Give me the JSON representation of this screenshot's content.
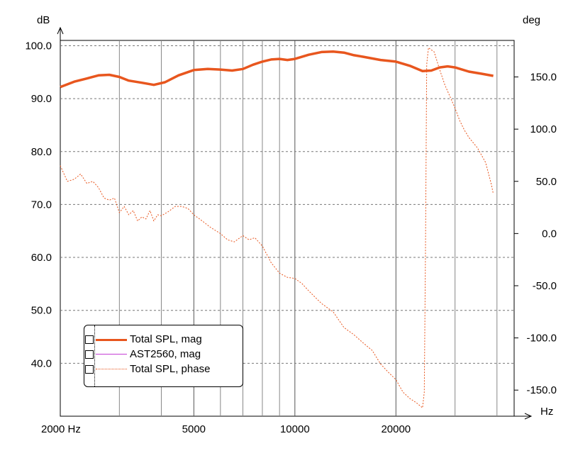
{
  "chart_data": {
    "type": "line",
    "x_unit": "Hz",
    "y_left_unit": "dB",
    "y_right_unit": "deg",
    "x_scale": "log",
    "xlim": [
      2000,
      45000
    ],
    "ylim_left": [
      30,
      101
    ],
    "ylim_right": [
      -175,
      185
    ],
    "x_tick_labels": [
      {
        "value": 2000,
        "label": "2000 Hz"
      },
      {
        "value": 5000,
        "label": "5000"
      },
      {
        "value": 10000,
        "label": "10000"
      },
      {
        "value": 20000,
        "label": "20000"
      }
    ],
    "x_axis_end_label": "Hz",
    "y_left_ticks": [
      {
        "value": 100,
        "label": "100.0"
      },
      {
        "value": 90,
        "label": "90.0"
      },
      {
        "value": 80,
        "label": "80.0"
      },
      {
        "value": 70,
        "label": "70.0"
      },
      {
        "value": 60,
        "label": "60.0"
      },
      {
        "value": 50,
        "label": "50.0"
      },
      {
        "value": 40,
        "label": "40.0"
      }
    ],
    "y_right_ticks": [
      {
        "value": 150,
        "label": "150.0"
      },
      {
        "value": 100,
        "label": "100.0"
      },
      {
        "value": 50,
        "label": "50.0"
      },
      {
        "value": 0,
        "label": "0.0"
      },
      {
        "value": -50,
        "label": "-50.0"
      },
      {
        "value": -100,
        "label": "-100.0"
      },
      {
        "value": -150,
        "label": "-150.0"
      }
    ],
    "grid": true,
    "legend_position": "bottom-left",
    "series": [
      {
        "name": "Total SPL, mag",
        "axis": "left",
        "color": "#e8561e",
        "style": "solid-thick",
        "points": [
          [
            2000,
            92.2
          ],
          [
            2200,
            93.2
          ],
          [
            2400,
            93.8
          ],
          [
            2600,
            94.4
          ],
          [
            2800,
            94.5
          ],
          [
            3000,
            94.1
          ],
          [
            3200,
            93.4
          ],
          [
            3500,
            93.0
          ],
          [
            3800,
            92.6
          ],
          [
            4100,
            93.1
          ],
          [
            4500,
            94.4
          ],
          [
            5000,
            95.4
          ],
          [
            5500,
            95.6
          ],
          [
            6000,
            95.5
          ],
          [
            6500,
            95.3
          ],
          [
            7000,
            95.6
          ],
          [
            7500,
            96.4
          ],
          [
            8000,
            97.0
          ],
          [
            8500,
            97.4
          ],
          [
            9000,
            97.5
          ],
          [
            9500,
            97.3
          ],
          [
            10000,
            97.5
          ],
          [
            11000,
            98.3
          ],
          [
            12000,
            98.8
          ],
          [
            13000,
            98.9
          ],
          [
            14000,
            98.7
          ],
          [
            15000,
            98.2
          ],
          [
            16000,
            97.9
          ],
          [
            18000,
            97.3
          ],
          [
            20000,
            97.0
          ],
          [
            22000,
            96.2
          ],
          [
            24000,
            95.2
          ],
          [
            25500,
            95.3
          ],
          [
            27000,
            95.9
          ],
          [
            28500,
            96.1
          ],
          [
            30000,
            95.9
          ],
          [
            33000,
            95.1
          ],
          [
            36000,
            94.7
          ],
          [
            39000,
            94.3
          ]
        ]
      },
      {
        "name": "AST2560, mag",
        "axis": "left",
        "color": "#c43dd6",
        "style": "solid-thin",
        "points": []
      },
      {
        "name": "Total SPL, phase",
        "axis": "right",
        "color": "#e8561e",
        "style": "dotted",
        "points": [
          [
            2000,
            65
          ],
          [
            2100,
            50
          ],
          [
            2200,
            52
          ],
          [
            2300,
            57
          ],
          [
            2400,
            48
          ],
          [
            2500,
            50
          ],
          [
            2600,
            44
          ],
          [
            2700,
            34
          ],
          [
            2800,
            32
          ],
          [
            2900,
            34
          ],
          [
            3000,
            20
          ],
          [
            3100,
            26
          ],
          [
            3200,
            18
          ],
          [
            3300,
            22
          ],
          [
            3400,
            12
          ],
          [
            3500,
            16
          ],
          [
            3600,
            14
          ],
          [
            3700,
            22
          ],
          [
            3800,
            12
          ],
          [
            3900,
            18
          ],
          [
            4000,
            17
          ],
          [
            4200,
            21
          ],
          [
            4400,
            26
          ],
          [
            4600,
            26
          ],
          [
            4800,
            24
          ],
          [
            5000,
            18
          ],
          [
            5300,
            12
          ],
          [
            5600,
            6
          ],
          [
            6000,
            0
          ],
          [
            6300,
            -6
          ],
          [
            6600,
            -8
          ],
          [
            7000,
            -2
          ],
          [
            7300,
            -6
          ],
          [
            7600,
            -4
          ],
          [
            8000,
            -12
          ],
          [
            8500,
            -28
          ],
          [
            9000,
            -38
          ],
          [
            9500,
            -42
          ],
          [
            10000,
            -43
          ],
          [
            10500,
            -48
          ],
          [
            11000,
            -55
          ],
          [
            12000,
            -67
          ],
          [
            13000,
            -75
          ],
          [
            14000,
            -90
          ],
          [
            15000,
            -97
          ],
          [
            16000,
            -105
          ],
          [
            17000,
            -112
          ],
          [
            18000,
            -125
          ],
          [
            19000,
            -133
          ],
          [
            20000,
            -140
          ],
          [
            21000,
            -152
          ],
          [
            22000,
            -158
          ],
          [
            23000,
            -162
          ],
          [
            24000,
            -167
          ],
          [
            24300,
            -152
          ],
          [
            24500,
            -15
          ],
          [
            24700,
            162
          ],
          [
            25000,
            178
          ],
          [
            26000,
            174
          ],
          [
            27000,
            157
          ],
          [
            28000,
            142
          ],
          [
            29000,
            131
          ],
          [
            30000,
            120
          ],
          [
            31000,
            108
          ],
          [
            32000,
            99
          ],
          [
            33000,
            92
          ],
          [
            35000,
            82
          ],
          [
            37000,
            68
          ],
          [
            38500,
            47
          ],
          [
            39000,
            38
          ]
        ]
      }
    ]
  }
}
